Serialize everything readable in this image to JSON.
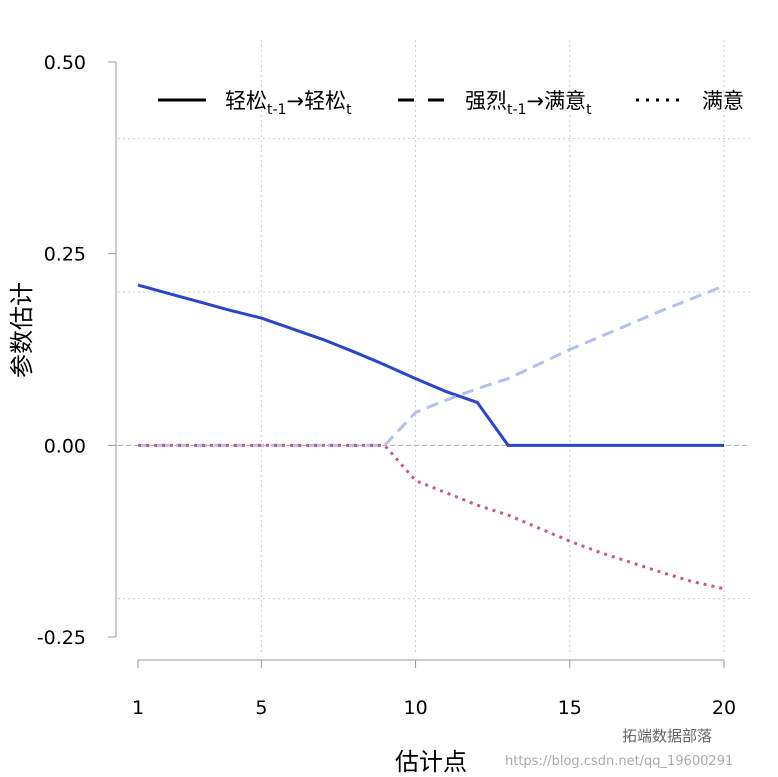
{
  "chart_data": {
    "type": "line",
    "title": "",
    "xlabel": "估计点",
    "ylabel": "参数估计",
    "xlim": [
      1,
      20
    ],
    "ylim": [
      -0.25,
      0.5
    ],
    "xticks": [
      1,
      5,
      10,
      15,
      20
    ],
    "yticks": [
      "0.50",
      "0.25",
      "0.00",
      "-0.25"
    ],
    "ytick_values": [
      0.5,
      0.25,
      0,
      -0.25
    ],
    "grid": true,
    "legend_placement": "top",
    "x": [
      1,
      2,
      3,
      4,
      5,
      6,
      7,
      8,
      9,
      10,
      11,
      12,
      13,
      14,
      15,
      16,
      17,
      18,
      19,
      20
    ],
    "series": [
      {
        "name": "轻松t-1→轻松t",
        "legend_main": "轻松",
        "legend_sub1": "t-1",
        "legend_arrow": "→",
        "legend_main2": "轻松",
        "legend_sub2": "t",
        "style": "solid",
        "color": "#2a45c8",
        "values": [
          0.209,
          0.198,
          0.187,
          0.176,
          0.166,
          0.152,
          0.138,
          0.122,
          0.105,
          0.087,
          0.07,
          0.056,
          0,
          0,
          0,
          0,
          0,
          0,
          0,
          0
        ]
      },
      {
        "name": "强烈t-1→满意t",
        "legend_main": "强烈",
        "legend_sub1": "t-1",
        "legend_arrow": "→",
        "legend_main2": "满意",
        "legend_sub2": "t",
        "style": "dashed",
        "color": "#b3c0ee",
        "values": [
          0,
          0,
          0,
          0,
          0,
          0,
          0,
          0,
          0,
          0.043,
          0.059,
          0.074,
          0.087,
          0.106,
          0.125,
          0.142,
          0.159,
          0.176,
          0.192,
          0.208
        ]
      },
      {
        "name": "满意",
        "legend_main": "满意",
        "style": "dotted",
        "color": "#cc5a7e",
        "values": [
          0,
          0,
          0,
          0,
          0,
          0,
          0,
          0,
          0,
          -0.046,
          -0.062,
          -0.078,
          -0.091,
          -0.108,
          -0.125,
          -0.14,
          -0.153,
          -0.166,
          -0.178,
          -0.187
        ]
      }
    ]
  },
  "watermark": {
    "url": "https://blog.csdn.net/qq_19600291",
    "brand": "拓端数据部落"
  }
}
